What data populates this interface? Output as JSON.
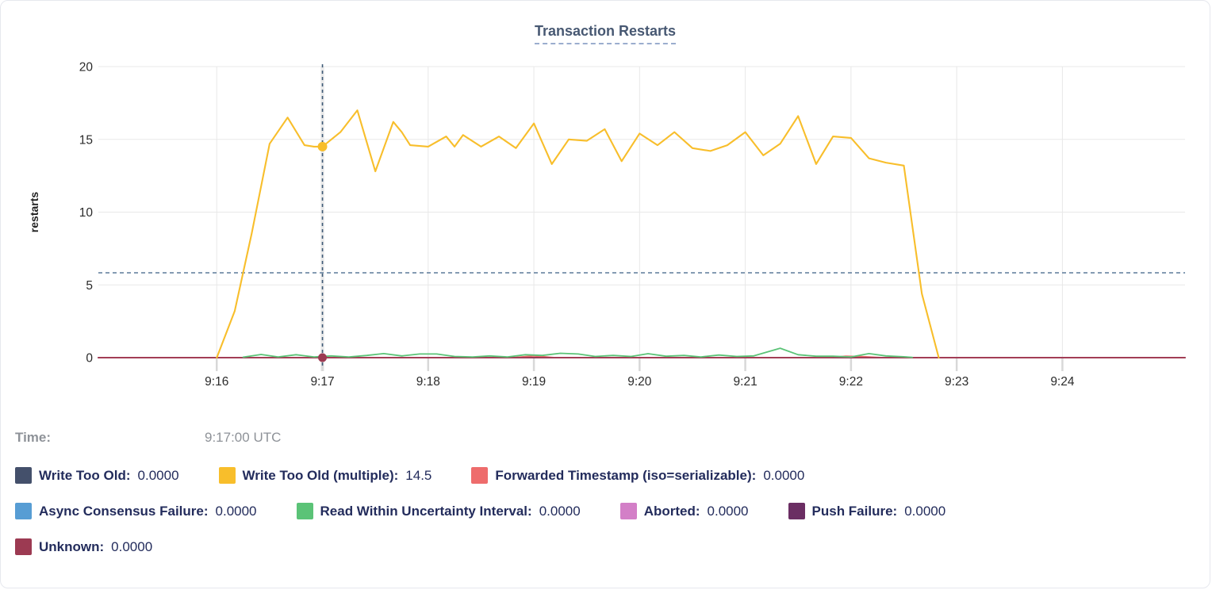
{
  "title": "Transaction Restarts",
  "tooltip": {
    "time_label": "Time:",
    "time_value": "9:17:00 UTC"
  },
  "chart_data": {
    "type": "line",
    "title": "Transaction Restarts",
    "xlabel": "",
    "ylabel": "restarts",
    "ylim": [
      0,
      20
    ],
    "yticks": [
      0,
      5,
      10,
      15,
      20
    ],
    "xlim": [
      14.88,
      25.16
    ],
    "xticks": [
      {
        "t": 16,
        "label": "9:16"
      },
      {
        "t": 17,
        "label": "9:17"
      },
      {
        "t": 18,
        "label": "9:18"
      },
      {
        "t": 19,
        "label": "9:19"
      },
      {
        "t": 20,
        "label": "9:20"
      },
      {
        "t": 21,
        "label": "9:21"
      },
      {
        "t": 22,
        "label": "9:22"
      },
      {
        "t": 23,
        "label": "9:23"
      },
      {
        "t": 24,
        "label": "9:24"
      }
    ],
    "grid": true,
    "legend_position": "bottom",
    "guide_line_y": 5.83,
    "guide_color": "#5c7a99",
    "crosshair": {
      "t": 17.0,
      "time": "9:17:00 UTC",
      "color": "#3e5a77",
      "points": [
        {
          "series": "Write Too Old (multiple)",
          "v": 14.5
        },
        {
          "series": "Unknown",
          "v": 0
        }
      ]
    },
    "series": [
      {
        "name": "Write Too Old",
        "color": "#44506b",
        "hover_value": "0.0000",
        "points": [
          [
            14.88,
            0
          ],
          [
            25.16,
            0
          ]
        ]
      },
      {
        "name": "Write Too Old (multiple)",
        "color": "#f8be2b",
        "hover_value": "14.5",
        "points": [
          [
            16.0,
            0
          ],
          [
            16.17,
            3.2
          ],
          [
            16.33,
            8.5
          ],
          [
            16.5,
            14.7
          ],
          [
            16.67,
            16.5
          ],
          [
            16.83,
            14.6
          ],
          [
            16.92,
            14.5
          ],
          [
            17.0,
            14.5
          ],
          [
            17.17,
            15.5
          ],
          [
            17.33,
            17.0
          ],
          [
            17.5,
            12.8
          ],
          [
            17.67,
            16.2
          ],
          [
            17.75,
            15.5
          ],
          [
            17.83,
            14.6
          ],
          [
            18.0,
            14.5
          ],
          [
            18.17,
            15.2
          ],
          [
            18.25,
            14.5
          ],
          [
            18.33,
            15.3
          ],
          [
            18.5,
            14.5
          ],
          [
            18.67,
            15.2
          ],
          [
            18.83,
            14.4
          ],
          [
            19.0,
            16.1
          ],
          [
            19.17,
            13.3
          ],
          [
            19.33,
            15.0
          ],
          [
            19.5,
            14.9
          ],
          [
            19.67,
            15.7
          ],
          [
            19.83,
            13.5
          ],
          [
            20.0,
            15.4
          ],
          [
            20.17,
            14.6
          ],
          [
            20.33,
            15.5
          ],
          [
            20.5,
            14.4
          ],
          [
            20.67,
            14.2
          ],
          [
            20.83,
            14.6
          ],
          [
            21.0,
            15.5
          ],
          [
            21.17,
            13.9
          ],
          [
            21.33,
            14.7
          ],
          [
            21.5,
            16.6
          ],
          [
            21.67,
            13.3
          ],
          [
            21.83,
            15.2
          ],
          [
            22.0,
            15.1
          ],
          [
            22.17,
            13.7
          ],
          [
            22.33,
            13.4
          ],
          [
            22.5,
            13.2
          ],
          [
            22.67,
            4.4
          ],
          [
            22.83,
            0
          ]
        ]
      },
      {
        "name": "Forwarded Timestamp (iso=serializable)",
        "color": "#ee6c6c",
        "hover_value": "0.0000",
        "points": [
          [
            14.88,
            0
          ],
          [
            18.8,
            0
          ],
          [
            19.0,
            0.12
          ],
          [
            19.2,
            0
          ],
          [
            21.8,
            0
          ],
          [
            21.95,
            0.1
          ],
          [
            22.1,
            0.07
          ],
          [
            22.3,
            0
          ],
          [
            25.16,
            0
          ]
        ]
      },
      {
        "name": "Async Consensus Failure",
        "color": "#579dd4",
        "hover_value": "0.0000",
        "points": [
          [
            14.88,
            0
          ],
          [
            25.16,
            0
          ]
        ]
      },
      {
        "name": "Read Within Uncertainty Interval",
        "color": "#5bc377",
        "hover_value": "0.0000",
        "points": [
          [
            16.25,
            0.03
          ],
          [
            16.42,
            0.22
          ],
          [
            16.58,
            0.05
          ],
          [
            16.75,
            0.2
          ],
          [
            16.92,
            0.05
          ],
          [
            17.08,
            0.12
          ],
          [
            17.25,
            0.05
          ],
          [
            17.42,
            0.15
          ],
          [
            17.58,
            0.28
          ],
          [
            17.75,
            0.12
          ],
          [
            17.92,
            0.25
          ],
          [
            18.08,
            0.25
          ],
          [
            18.25,
            0.08
          ],
          [
            18.42,
            0.05
          ],
          [
            18.58,
            0.12
          ],
          [
            18.75,
            0.05
          ],
          [
            18.92,
            0.2
          ],
          [
            19.08,
            0.15
          ],
          [
            19.25,
            0.3
          ],
          [
            19.42,
            0.25
          ],
          [
            19.58,
            0.08
          ],
          [
            19.75,
            0.15
          ],
          [
            19.92,
            0.08
          ],
          [
            20.08,
            0.27
          ],
          [
            20.25,
            0.1
          ],
          [
            20.42,
            0.15
          ],
          [
            20.58,
            0.05
          ],
          [
            20.75,
            0.18
          ],
          [
            20.92,
            0.08
          ],
          [
            21.08,
            0.12
          ],
          [
            21.33,
            0.65
          ],
          [
            21.5,
            0.2
          ],
          [
            21.67,
            0.1
          ],
          [
            21.83,
            0.1
          ],
          [
            22.0,
            0.05
          ],
          [
            22.17,
            0.28
          ],
          [
            22.33,
            0.12
          ],
          [
            22.5,
            0.06
          ],
          [
            22.58,
            0.02
          ]
        ]
      },
      {
        "name": "Aborted",
        "color": "#d37fc7",
        "hover_value": "0.0000",
        "points": [
          [
            14.88,
            0
          ],
          [
            25.16,
            0
          ]
        ]
      },
      {
        "name": "Push Failure",
        "color": "#6b2e63",
        "hover_value": "0.0000",
        "points": [
          [
            14.88,
            0
          ],
          [
            25.16,
            0
          ]
        ]
      },
      {
        "name": "Unknown",
        "color": "#9c3a52",
        "hover_value": "0.0000",
        "points": [
          [
            14.88,
            0
          ],
          [
            25.16,
            0
          ]
        ]
      }
    ],
    "legend_rows": [
      [
        0,
        1,
        2
      ],
      [
        3,
        4,
        5,
        6
      ],
      [
        7
      ]
    ],
    "draw_order": [
      0,
      3,
      5,
      6,
      2,
      7,
      4,
      1
    ]
  }
}
